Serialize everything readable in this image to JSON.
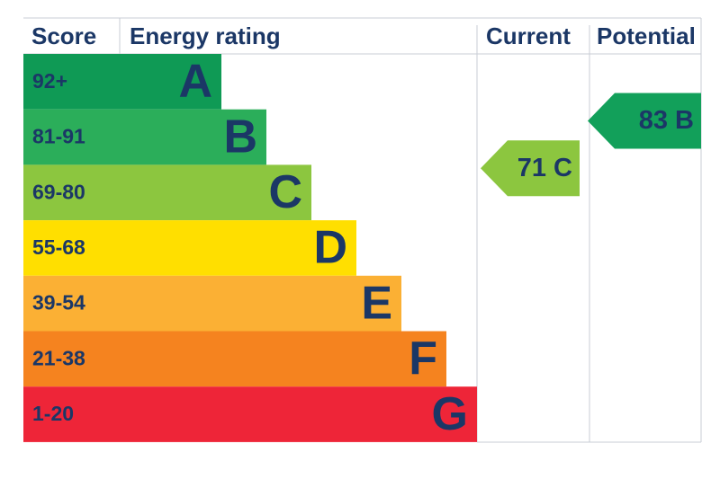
{
  "header": {
    "score": "Score",
    "rating": "Energy rating",
    "current": "Current",
    "potential": "Potential"
  },
  "bands": [
    {
      "score": "92+",
      "rating": "A",
      "color": "#0f9a55"
    },
    {
      "score": "81-91",
      "rating": "B",
      "color": "#2bae5a"
    },
    {
      "score": "69-80",
      "rating": "C",
      "color": "#8cc63f"
    },
    {
      "score": "55-68",
      "rating": "D",
      "color": "#ffdf00"
    },
    {
      "score": "39-54",
      "rating": "E",
      "color": "#fbb034"
    },
    {
      "score": "21-38",
      "rating": "F",
      "color": "#f5831f"
    },
    {
      "score": "1-20",
      "rating": "G",
      "color": "#ee2538"
    }
  ],
  "current": {
    "label": "71 C",
    "rating": "C",
    "color": "#8cc63f"
  },
  "potential": {
    "label": "83 B",
    "rating": "B",
    "color": "#12a05a"
  }
}
